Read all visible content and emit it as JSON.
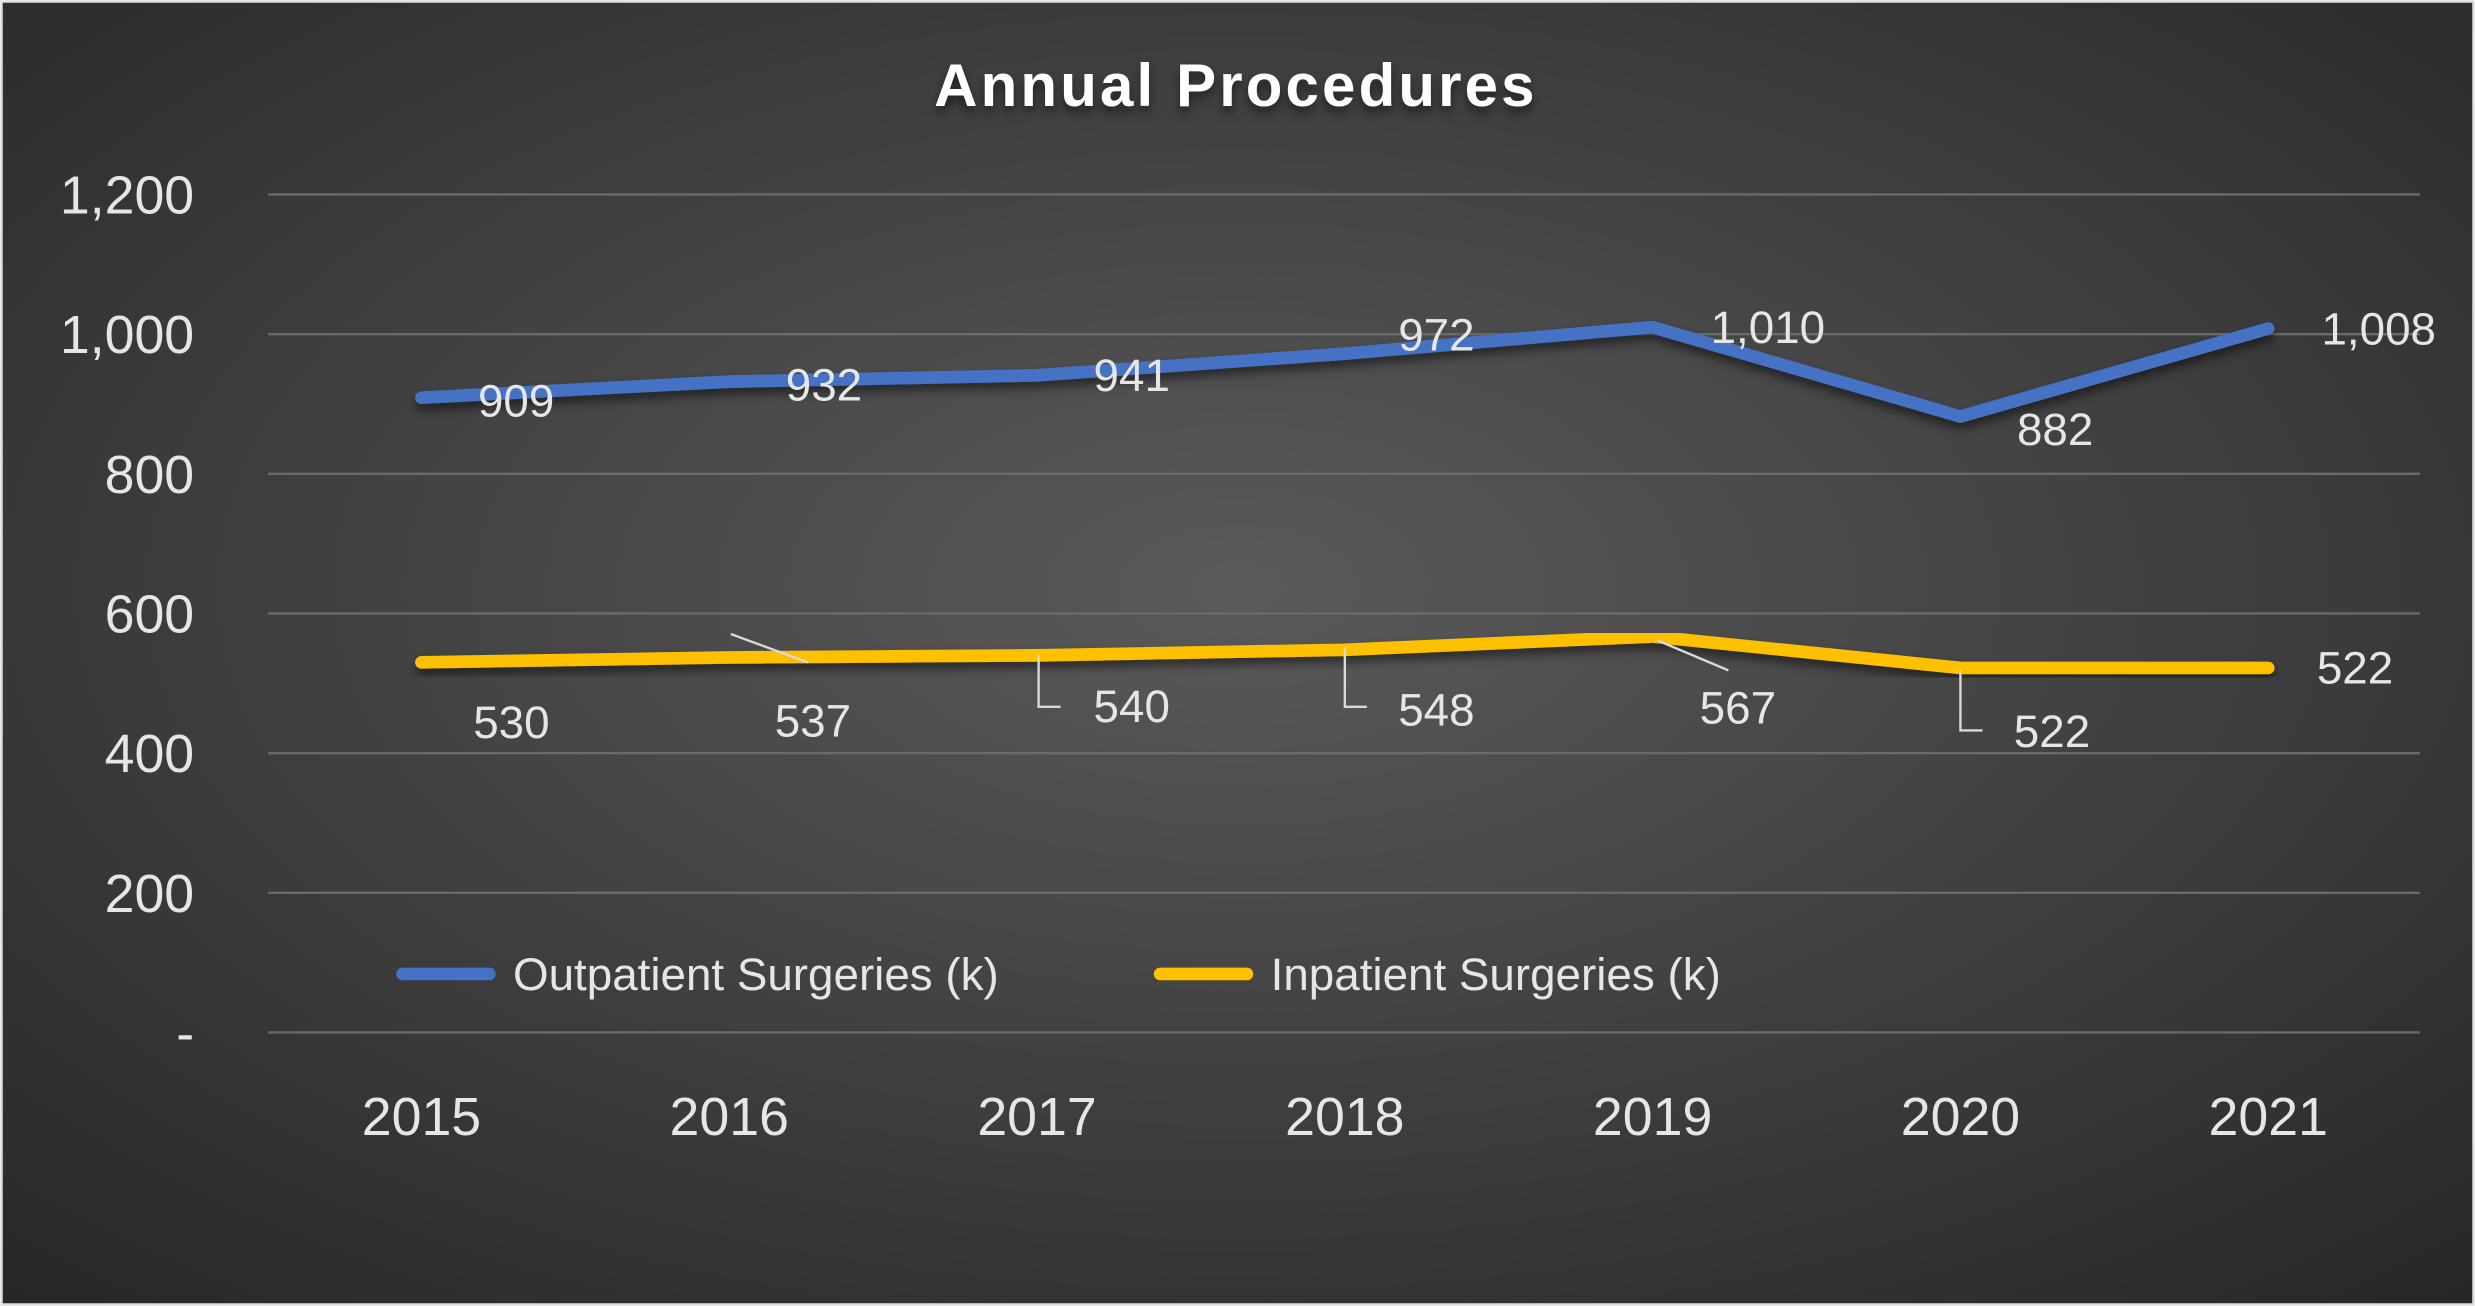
{
  "chart_data": {
    "type": "line",
    "title": "Annual Procedures",
    "categories": [
      "2015",
      "2016",
      "2017",
      "2018",
      "2019",
      "2020",
      "2021"
    ],
    "series": [
      {
        "name": "Outpatient Surgeries (k)",
        "color": "#4472C4",
        "values": [
          909,
          932,
          941,
          972,
          1010,
          882,
          1008
        ],
        "labels": [
          "909",
          "932",
          "941",
          "972",
          "1,010",
          "882",
          "1,008"
        ]
      },
      {
        "name": "Inpatient Surgeries (k)",
        "color": "#FFC000",
        "values": [
          530,
          537,
          540,
          548,
          567,
          522,
          522
        ],
        "labels": [
          "530",
          "537",
          "540",
          "548",
          "567",
          "522",
          "522"
        ]
      }
    ],
    "ylim": [
      0,
      1200
    ],
    "yticks": [
      0,
      200,
      400,
      600,
      800,
      1000,
      1200
    ],
    "ytick_labels": [
      "-",
      "200",
      "400",
      "600",
      "800",
      "1,000",
      "1,200"
    ],
    "grid": true,
    "legend": "bottom-left inside plot",
    "background": "dark gradient"
  }
}
